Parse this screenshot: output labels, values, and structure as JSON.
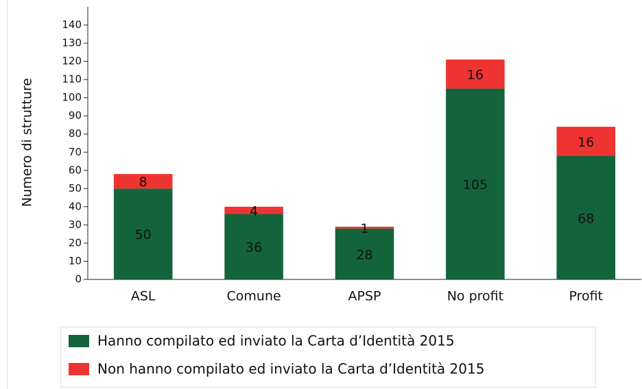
{
  "chart_data": {
    "type": "stacked_bar",
    "y_label": "Numero di strutture",
    "categories": [
      "ASL",
      "Comune",
      "APSP",
      "No profit",
      "Profit"
    ],
    "series": [
      {
        "name": "Hanno compilato ed inviato la Carta d’Identità 2015",
        "color": "#13643a",
        "values": [
          50,
          36,
          28,
          105,
          68
        ]
      },
      {
        "name": "Non hanno compilato ed inviato la Carta d’Identità 2015",
        "color": "#ee3333",
        "values": [
          8,
          4,
          1,
          16,
          16
        ]
      }
    ],
    "ylim": [
      0,
      150
    ],
    "yticks": [
      0,
      10,
      20,
      30,
      40,
      50,
      60,
      70,
      80,
      90,
      100,
      110,
      120,
      130,
      140
    ],
    "legend": "bottom"
  }
}
